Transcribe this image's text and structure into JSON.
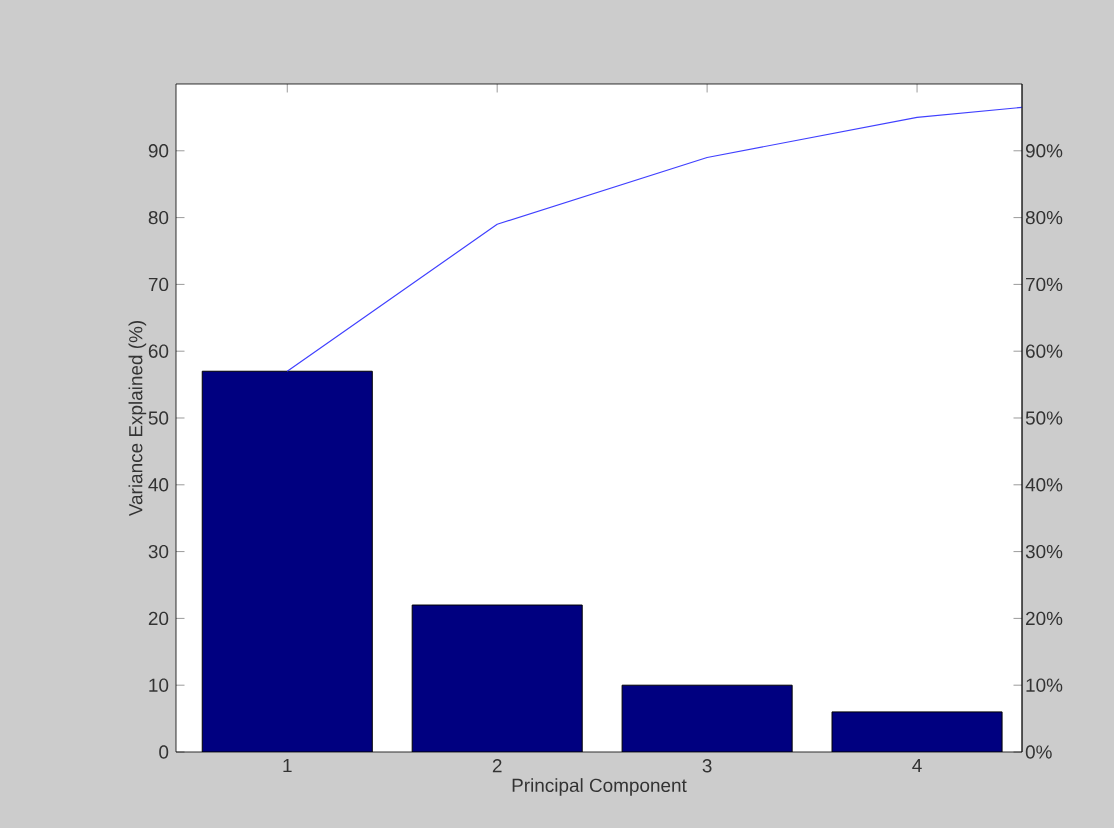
{
  "chart_data": {
    "type": "bar",
    "xlabel": "Principal Component",
    "ylabel": "Variance Explained (%)",
    "xlim": [
      0.47,
      4.5
    ],
    "xticks": [
      1,
      2,
      3,
      4
    ],
    "ylim": [
      0,
      100
    ],
    "yticks": [
      0,
      10,
      20,
      30,
      40,
      50,
      60,
      70,
      80,
      90
    ],
    "y2lim": [
      0,
      100
    ],
    "y2ticks": [
      {
        "value": 0,
        "label": "0%"
      },
      {
        "value": 10,
        "label": "10%"
      },
      {
        "value": 20,
        "label": "20%"
      },
      {
        "value": 30,
        "label": "30%"
      },
      {
        "value": 40,
        "label": "40%"
      },
      {
        "value": 50,
        "label": "50%"
      },
      {
        "value": 60,
        "label": "60%"
      },
      {
        "value": 70,
        "label": "70%"
      },
      {
        "value": 80,
        "label": "80%"
      },
      {
        "value": 90,
        "label": "90%"
      }
    ],
    "series": [
      {
        "color": "#000080",
        "x": [
          1,
          2,
          3,
          4
        ],
        "values": [
          57,
          22,
          10,
          6
        ]
      },
      {
        "type": "line",
        "color": "#4040ff",
        "x": [
          1,
          2,
          3,
          4,
          4.5
        ],
        "values": [
          57,
          79,
          89,
          95,
          96.5
        ]
      }
    ]
  }
}
